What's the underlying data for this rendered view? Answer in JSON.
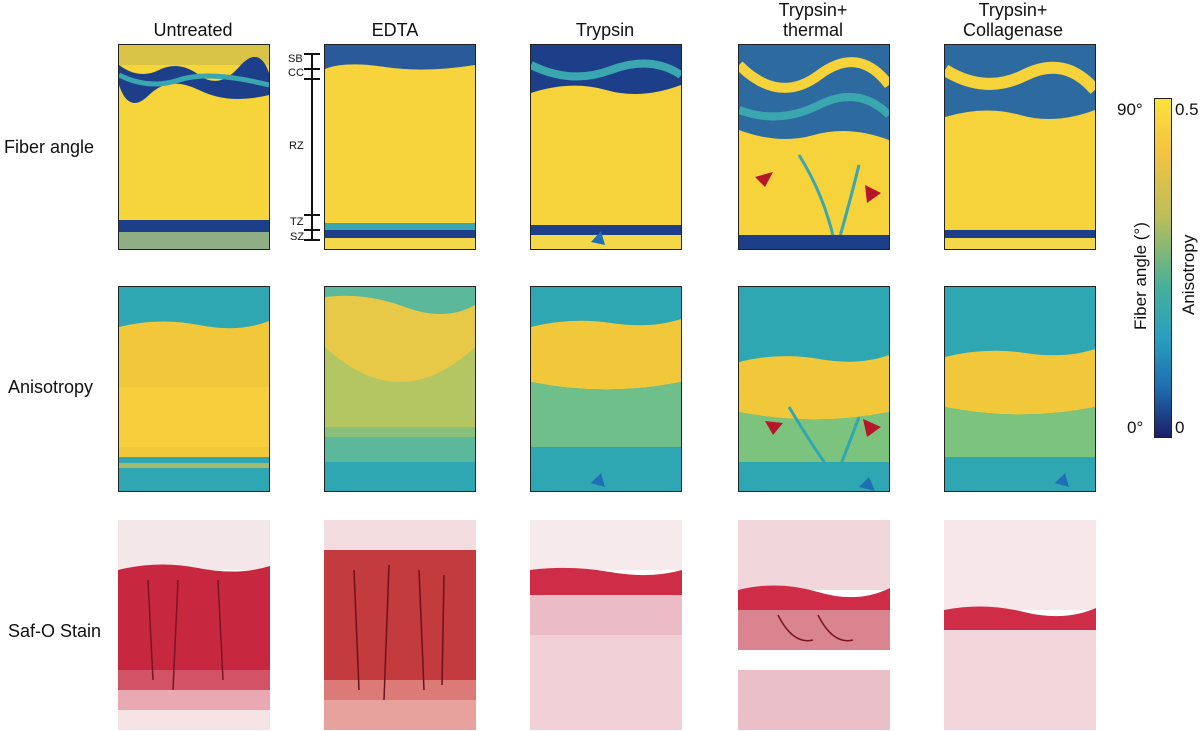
{
  "columns": [
    "Untreated",
    "EDTA",
    "Trypsin",
    "Trypsin+\nthermal",
    "Trypsin+\nCollagenase"
  ],
  "column_lines": [
    [
      "Untreated"
    ],
    [
      "EDTA"
    ],
    [
      "Trypsin"
    ],
    [
      "Trypsin+",
      "thermal"
    ],
    [
      "Trypsin+",
      "Collagenase"
    ]
  ],
  "rows": {
    "fiber": "Fiber angle",
    "anisotropy": "Anisotropy",
    "stain": "Saf-O Stain"
  },
  "zones": {
    "sb": "SB",
    "cc": "CC",
    "rz": "RZ",
    "tz": "TZ",
    "sz": "SZ"
  },
  "colorbar": {
    "fiber_max": "90°",
    "fiber_min": "0°",
    "aniso_max": "0.5",
    "aniso_min": "0",
    "fiber_title": "Fiber angle (°)",
    "aniso_title": "Anisotropy"
  },
  "colors": {
    "yellow": "#f7d93a",
    "dark_blue": "#1d3f8a",
    "teal": "#25a3b5",
    "stain_red": "#c8283f",
    "marker_red": "#b5162a",
    "marker_blue": "#1e6fb4"
  }
}
